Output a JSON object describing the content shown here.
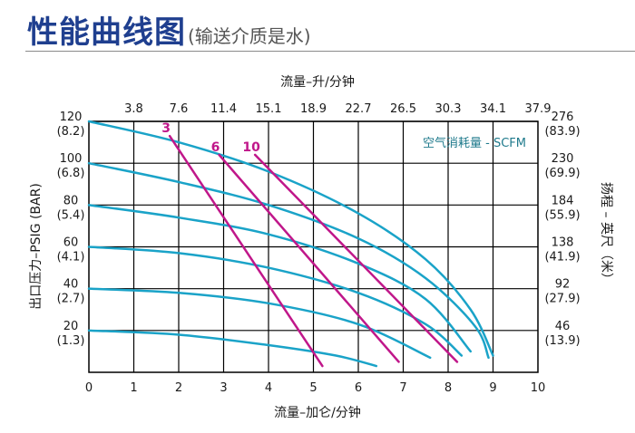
{
  "title": "性能曲线图",
  "subtitle": "(输送介质是水)",
  "chart_data": {
    "type": "line",
    "top_axis_label": "流量–升/分钟",
    "bottom_axis_label": "流量–加仑/分钟",
    "left_axis_label": "出口压力–PSIG (BAR)",
    "right_axis_label": "扬程 – 英尺（米）",
    "legend_note": "空气消耗量 - SCFM",
    "xlim": [
      0,
      10
    ],
    "ylim": [
      0,
      120
    ],
    "grid": true,
    "bottom_ticks": [
      "0",
      "1",
      "2",
      "3",
      "4",
      "5",
      "6",
      "7",
      "8",
      "9",
      "10"
    ],
    "top_ticks": [
      "3.8",
      "7.6",
      "11.4",
      "15.1",
      "18.9",
      "22.7",
      "26.5",
      "30.3",
      "34.1",
      "37.9"
    ],
    "left_ticks": [
      {
        "value": 120,
        "psig": "120",
        "bar": "(8.2)"
      },
      {
        "value": 100,
        "psig": "100",
        "bar": "(6.8)"
      },
      {
        "value": 80,
        "psig": "80",
        "bar": "(5.4)"
      },
      {
        "value": 60,
        "psig": "60",
        "bar": "(4.1)"
      },
      {
        "value": 40,
        "psig": "40",
        "bar": "(2.7)"
      },
      {
        "value": 20,
        "psig": "20",
        "bar": "(1.3)"
      }
    ],
    "right_ticks": [
      {
        "value": 120,
        "ft": "276",
        "m": "(83.9)"
      },
      {
        "value": 100,
        "ft": "230",
        "m": "(69.9)"
      },
      {
        "value": 80,
        "ft": "184",
        "m": "(55.9)"
      },
      {
        "value": 60,
        "ft": "138",
        "m": "(41.9)"
      },
      {
        "value": 40,
        "ft": "92",
        "m": "(27.9)"
      },
      {
        "value": 20,
        "ft": "46",
        "m": "(13.9)"
      }
    ],
    "colors": {
      "pressure": "#1aa3c8",
      "air": "#c0178a",
      "grid": "#000000"
    },
    "pressure_curves": [
      {
        "x": [
          0,
          2,
          4,
          6,
          7.5,
          8.5,
          9.0
        ],
        "y": [
          120,
          110,
          96,
          76,
          54,
          30,
          8
        ]
      },
      {
        "x": [
          0,
          2,
          4,
          6,
          7.5,
          8.6,
          8.9
        ],
        "y": [
          100,
          91,
          80,
          64,
          45,
          22,
          7
        ]
      },
      {
        "x": [
          0,
          2,
          4,
          6,
          7.5,
          8.5
        ],
        "y": [
          80,
          74,
          66,
          52,
          35,
          10
        ]
      },
      {
        "x": [
          0,
          2,
          4,
          6,
          7.5,
          8.3
        ],
        "y": [
          60,
          57,
          50,
          38,
          23,
          8
        ]
      },
      {
        "x": [
          0,
          2,
          4,
          6,
          7.6
        ],
        "y": [
          40,
          38,
          33,
          23,
          7
        ]
      },
      {
        "x": [
          0,
          2,
          4,
          5.5,
          6.4
        ],
        "y": [
          20,
          18,
          13,
          8,
          3
        ]
      }
    ],
    "air_curves": [
      {
        "name": "3",
        "x": [
          1.8,
          5.2
        ],
        "y": [
          113,
          3
        ]
      },
      {
        "name": "6",
        "x": [
          2.9,
          6.9
        ],
        "y": [
          104,
          5
        ]
      },
      {
        "name": "10",
        "x": [
          3.7,
          8.2
        ],
        "y": [
          104,
          5
        ]
      }
    ]
  }
}
